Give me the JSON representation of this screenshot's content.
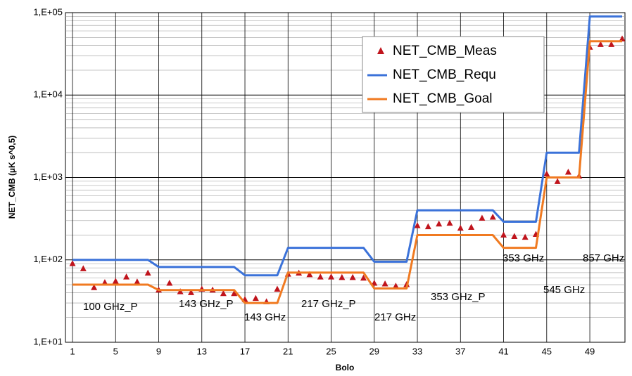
{
  "chart_data": {
    "type": "line",
    "log_y": true,
    "grid": true,
    "xlabel": "Bolo",
    "ylabel": "NET_CMB (µK s^0,5)",
    "categories": [
      1,
      null,
      null,
      null,
      5,
      null,
      null,
      null,
      9,
      null,
      null,
      null,
      13,
      null,
      null,
      null,
      17,
      null,
      null,
      null,
      21,
      null,
      null,
      null,
      25,
      null,
      null,
      null,
      29,
      null,
      null,
      null,
      33,
      null,
      null,
      null,
      37,
      null,
      null,
      null,
      41,
      null,
      null,
      null,
      45,
      null,
      null,
      null,
      49,
      null,
      null,
      null
    ],
    "ylim": [
      10,
      100000
    ],
    "yticks": [
      {
        "value": 10,
        "label": "1,E+01"
      },
      {
        "value": 100,
        "label": "1,E+02"
      },
      {
        "value": 1000,
        "label": "1,E+03"
      },
      {
        "value": 10000,
        "label": "1,E+04"
      },
      {
        "value": 100000,
        "label": "1,E+05"
      }
    ],
    "legend": "upper right",
    "series": [
      {
        "name": "NET_CMB_Meas",
        "color": "#c0141c",
        "marker": "triangle",
        "values": [
          90,
          78,
          46,
          53,
          55,
          62,
          54,
          69,
          43,
          52,
          41,
          40,
          44,
          43,
          39,
          39,
          33,
          34,
          31,
          44,
          67,
          69,
          66,
          62,
          62,
          61,
          61,
          60,
          52,
          51,
          48,
          50,
          260,
          252,
          272,
          278,
          242,
          248,
          320,
          330,
          200,
          192,
          188,
          204,
          1100,
          890,
          1160,
          1040,
          38000,
          41000,
          41000,
          48000
        ]
      },
      {
        "name": "NET_CMB_Requ",
        "color": "#3b72d9",
        "values": [
          100,
          100,
          100,
          100,
          100,
          100,
          100,
          100,
          82,
          82,
          82,
          82,
          82,
          82,
          82,
          82,
          65,
          65,
          65,
          65,
          140,
          140,
          140,
          140,
          140,
          140,
          140,
          140,
          95,
          95,
          95,
          95,
          400,
          400,
          400,
          400,
          400,
          400,
          400,
          400,
          290,
          290,
          290,
          290,
          2000,
          2000,
          2000,
          2000,
          90000,
          90000,
          90000,
          90000
        ]
      },
      {
        "name": "NET_CMB_Goal",
        "color": "#f07a21",
        "values": [
          50,
          50,
          50,
          50,
          50,
          50,
          50,
          50,
          43,
          43,
          43,
          43,
          43,
          43,
          43,
          43,
          30,
          30,
          30,
          30,
          70,
          70,
          70,
          70,
          70,
          70,
          70,
          70,
          45,
          45,
          45,
          45,
          200,
          200,
          200,
          200,
          200,
          200,
          200,
          200,
          140,
          140,
          140,
          140,
          1000,
          1000,
          1000,
          1000,
          45000,
          45000,
          45000,
          45000
        ]
      }
    ],
    "annotations": [
      "100 GHz_P",
      "143 GHz_P",
      "143 GHz",
      "217 GHz_P",
      "217 GHz",
      "353 GHz_P",
      "353 GHz",
      "545 GHz",
      "857 GHz"
    ]
  }
}
